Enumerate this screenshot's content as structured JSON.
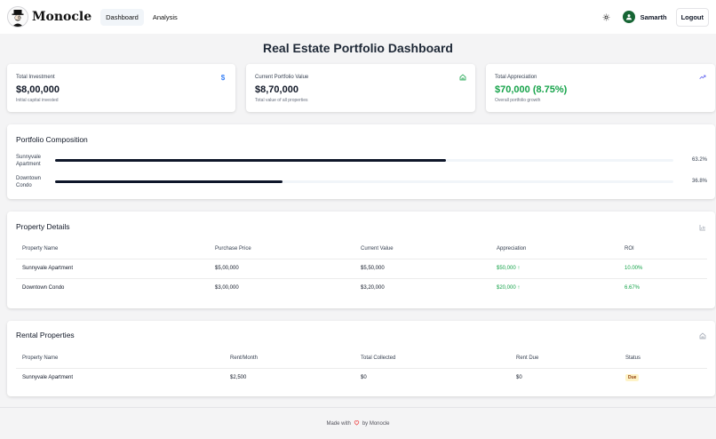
{
  "header": {
    "brand": "Monocle",
    "nav": [
      {
        "label": "Dashboard",
        "active": true
      },
      {
        "label": "Analysis",
        "active": false
      }
    ],
    "theme_icon": "sun-icon",
    "user": {
      "name": "Samarth",
      "icon": "user-icon"
    },
    "logout_label": "Logout"
  },
  "page_title": "Real Estate Portfolio Dashboard",
  "stats": [
    {
      "label": "Total Investment",
      "value": "$8,00,000",
      "sub": "Initial capital invested",
      "icon": "dollar-icon",
      "value_color": "#111827"
    },
    {
      "label": "Current Portfolio Value",
      "value": "$8,70,000",
      "sub": "Total value of all properties",
      "icon": "home-icon",
      "value_color": "#111827"
    },
    {
      "label": "Total Appreciation",
      "value": "$70,000 (8.75%)",
      "sub": "Overall portfolio growth",
      "icon": "trending-up-icon",
      "value_color": "#16a34a"
    }
  ],
  "composition": {
    "title": "Portfolio Composition",
    "items": [
      {
        "name": "Sunnyvale Apartment",
        "percent_label": "63.2%",
        "percent": 63.2
      },
      {
        "name": "Downtown Condo",
        "percent_label": "36.8%",
        "percent": 36.8
      }
    ]
  },
  "property_details": {
    "title": "Property Details",
    "icon": "bar-chart-icon",
    "columns": [
      "Property Name",
      "Purchase Price",
      "Current Value",
      "Appreciation",
      "ROI"
    ],
    "rows": [
      {
        "name": "Sunnyvale Apartment",
        "purchase": "$5,00,000",
        "current": "$5,50,000",
        "appreciation": "$50,000",
        "roi": "10.00%"
      },
      {
        "name": "Downtown Condo",
        "purchase": "$3,00,000",
        "current": "$3,20,000",
        "appreciation": "$20,000",
        "roi": "6.67%"
      }
    ]
  },
  "rental": {
    "title": "Rental Properties",
    "icon": "home-icon",
    "columns": [
      "Property Name",
      "Rent/Month",
      "Total Collected",
      "Rent Due",
      "Status"
    ],
    "rows": [
      {
        "name": "Sunnyvale Apartment",
        "rent": "$2,500",
        "collected": "$0",
        "due": "$0",
        "status": "Due"
      }
    ]
  },
  "footer": {
    "text_before": "Made with",
    "text_after": "by Monocle",
    "icon": "heart-icon"
  }
}
